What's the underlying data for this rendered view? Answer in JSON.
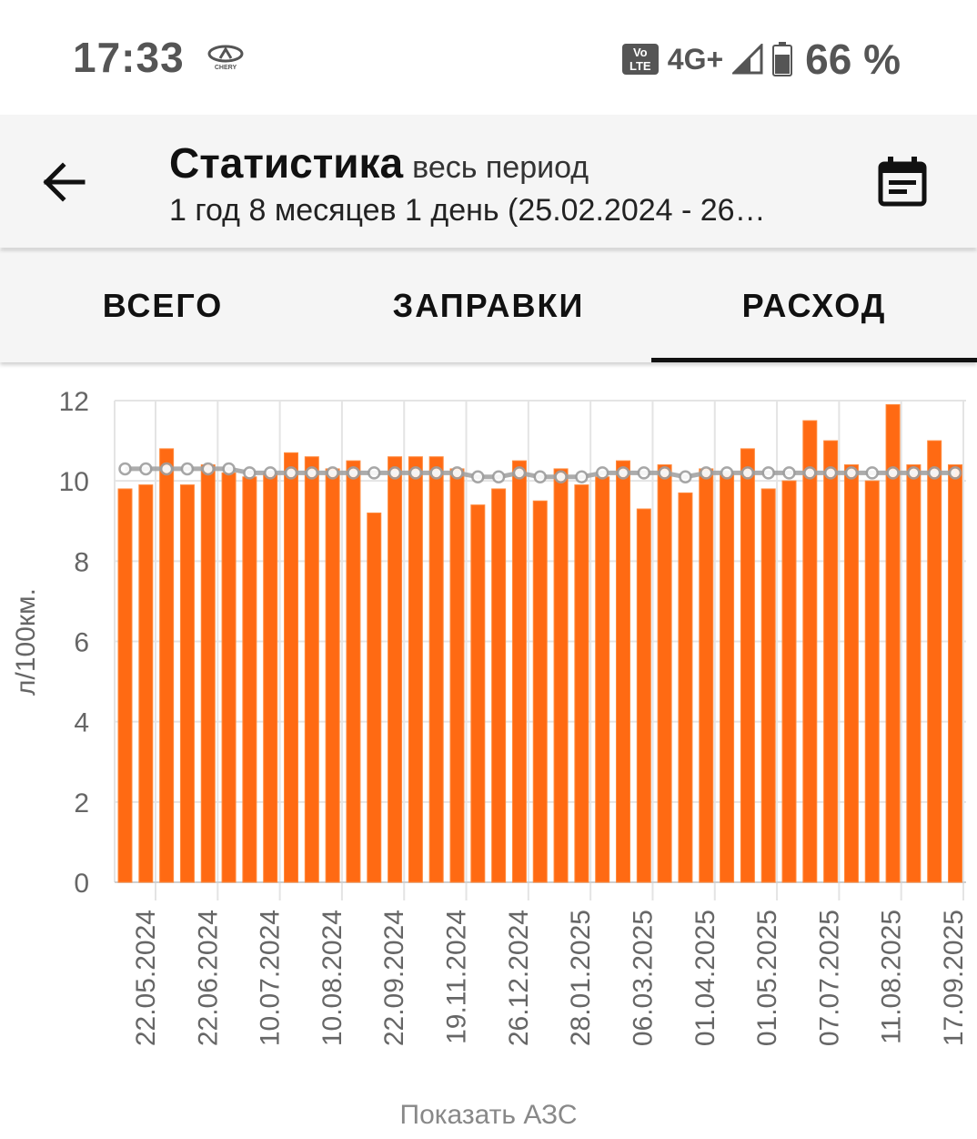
{
  "status_bar": {
    "time": "17:33",
    "logo_icon": "chery-logo-icon",
    "volte_line1": "Vo",
    "volte_line2": "LTE",
    "network": "4G+",
    "battery": "66 %"
  },
  "app_bar": {
    "title": "Статистика",
    "title_suffix": "весь период",
    "subtitle": "1 год 8 месяцев 1 день (25.02.2024 - 26…",
    "back_icon": "arrow-left-icon",
    "calendar_icon": "calendar-icon"
  },
  "tabs": [
    {
      "label": "ВСЕГО",
      "active": false
    },
    {
      "label": "ЗАПРАВКИ",
      "active": false
    },
    {
      "label": "РАСХОД",
      "active": true
    }
  ],
  "chart_data": {
    "type": "bar",
    "ylabel": "л/100км.",
    "ylim": [
      0,
      12
    ],
    "yticks": [
      0,
      2,
      4,
      6,
      8,
      10,
      12
    ],
    "grid": true,
    "bar_color": "#ff6a13",
    "line_color": "#9e9e9e",
    "x_tick_labels": [
      "22.05.2024",
      "22.06.2024",
      "10.07.2024",
      "10.08.2024",
      "22.09.2024",
      "19.11.2024",
      "26.12.2024",
      "28.01.2025",
      "06.03.2025",
      "01.04.2025",
      "01.05.2025",
      "07.07.2025",
      "11.08.2025",
      "17.09.2025"
    ],
    "series": [
      {
        "type": "bar",
        "values": [
          9.8,
          9.9,
          10.8,
          9.9,
          10.4,
          10.2,
          10.1,
          10.2,
          10.7,
          10.6,
          10.3,
          10.5,
          9.2,
          10.6,
          10.6,
          10.6,
          10.3,
          9.4,
          9.8,
          10.5,
          9.5,
          10.3,
          9.9,
          10.1,
          10.5,
          9.3,
          10.4,
          9.7,
          10.3,
          10.2,
          10.8,
          9.8,
          10.0,
          11.5,
          11.0,
          10.4,
          10.0,
          11.9,
          10.4,
          11.0,
          10.4
        ]
      },
      {
        "type": "line",
        "values": [
          10.3,
          10.3,
          10.3,
          10.3,
          10.3,
          10.3,
          10.2,
          10.2,
          10.2,
          10.2,
          10.2,
          10.2,
          10.2,
          10.2,
          10.2,
          10.2,
          10.2,
          10.1,
          10.1,
          10.2,
          10.1,
          10.1,
          10.1,
          10.2,
          10.2,
          10.2,
          10.2,
          10.1,
          10.2,
          10.2,
          10.2,
          10.2,
          10.2,
          10.2,
          10.2,
          10.2,
          10.2,
          10.2,
          10.2,
          10.2,
          10.2
        ]
      }
    ]
  },
  "footer": {
    "show_stations": "Показать АЗС"
  }
}
